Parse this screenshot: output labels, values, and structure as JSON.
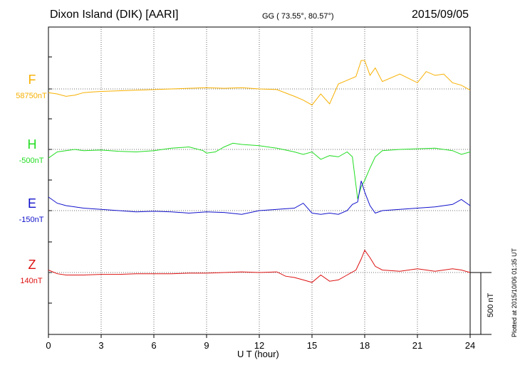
{
  "header": {
    "station": "Dixon Island (DIK)  [AARI]",
    "coords": "GG ( 73.55°,  80.57°)",
    "date": "2015/09/05"
  },
  "plotted_note": "Plotted at 2015/10/06 01:35 UT",
  "chart_data": {
    "type": "line",
    "xlabel": "U T (hour)",
    "xlim": [
      0,
      24
    ],
    "xticks": [
      "0",
      "3",
      "6",
      "9",
      "12",
      "15",
      "18",
      "21",
      "24"
    ],
    "scale_bar": "500 nT",
    "grid": "dotted",
    "series": [
      {
        "name": "F",
        "baseline": "58750nT",
        "color": "#f7b000",
        "x": [
          0,
          0.5,
          1,
          1.5,
          2,
          2.5,
          3,
          4,
          5,
          6,
          7,
          8,
          9,
          10,
          11,
          12,
          13,
          14,
          14.5,
          15,
          15.5,
          16,
          16.5,
          17,
          17.5,
          17.8,
          18,
          18.3,
          18.6,
          19,
          20,
          21,
          21.5,
          22,
          22.5,
          23,
          23.5,
          24
        ],
        "values": [
          -30,
          -40,
          -60,
          -50,
          -30,
          -25,
          -20,
          -15,
          -10,
          -5,
          0,
          5,
          10,
          5,
          10,
          0,
          -5,
          -60,
          -90,
          -130,
          -40,
          -120,
          40,
          70,
          100,
          230,
          230,
          110,
          170,
          60,
          120,
          50,
          140,
          110,
          120,
          50,
          30,
          -10
        ]
      },
      {
        "name": "H",
        "baseline": "-500nT",
        "color": "#22dd22",
        "x": [
          0,
          0.5,
          1,
          1.5,
          2,
          3,
          4,
          5,
          6,
          7,
          8,
          8.8,
          9,
          9.5,
          10,
          10.5,
          11,
          12,
          13,
          14,
          14.5,
          15,
          15.5,
          16,
          16.5,
          17,
          17.3,
          17.6,
          17.8,
          18,
          18.3,
          18.6,
          19,
          20,
          21,
          22,
          23,
          23.5,
          24
        ],
        "values": [
          -70,
          -20,
          -10,
          0,
          -10,
          -5,
          -15,
          -20,
          -10,
          10,
          20,
          -10,
          -30,
          -20,
          20,
          50,
          40,
          30,
          10,
          -20,
          -40,
          -20,
          -80,
          -50,
          -60,
          -20,
          -60,
          -400,
          -300,
          -250,
          -150,
          -60,
          -10,
          0,
          5,
          10,
          -10,
          -40,
          -20
        ]
      },
      {
        "name": "E",
        "baseline": "-150nT",
        "color": "#1111cc",
        "x": [
          0,
          0.5,
          1,
          2,
          3,
          4,
          5,
          6,
          7,
          8,
          9,
          10,
          11,
          12,
          13,
          14,
          14.5,
          15,
          15.5,
          16,
          16.5,
          17,
          17.3,
          17.6,
          17.8,
          18,
          18.3,
          18.6,
          19,
          20,
          21,
          22,
          23,
          23.5,
          24
        ],
        "values": [
          110,
          60,
          40,
          20,
          10,
          0,
          -10,
          -5,
          -10,
          -20,
          -10,
          -15,
          -30,
          0,
          10,
          20,
          60,
          -20,
          -30,
          -20,
          -30,
          0,
          50,
          70,
          240,
          150,
          40,
          -20,
          0,
          10,
          20,
          30,
          50,
          90,
          40
        ]
      },
      {
        "name": "Z",
        "baseline": "140nT",
        "color": "#dd1111",
        "x": [
          0,
          0.5,
          1,
          2,
          3,
          4,
          5,
          6,
          7,
          8,
          9,
          10,
          11,
          12,
          13,
          13.5,
          14,
          14.5,
          15,
          15.5,
          16,
          16.5,
          17,
          17.5,
          17.8,
          18,
          18.3,
          18.6,
          19,
          20,
          21,
          22,
          23,
          23.5,
          24
        ],
        "values": [
          20,
          -10,
          -20,
          -20,
          -15,
          -15,
          -10,
          -10,
          -10,
          -5,
          -5,
          0,
          5,
          0,
          5,
          -30,
          -40,
          -60,
          -80,
          -20,
          -70,
          -60,
          -20,
          20,
          110,
          180,
          120,
          50,
          20,
          10,
          30,
          10,
          30,
          20,
          0
        ]
      }
    ]
  }
}
